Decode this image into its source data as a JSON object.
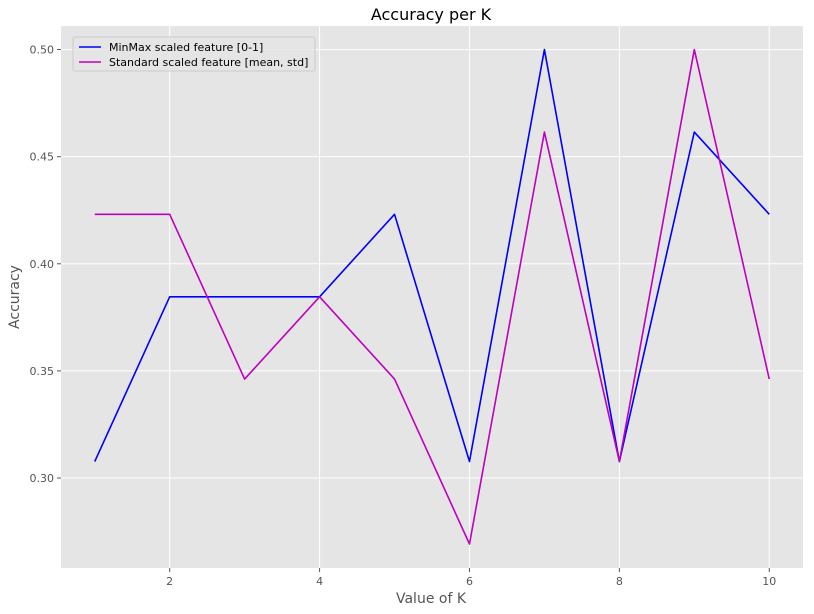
{
  "chart_data": {
    "type": "line",
    "title": "Accuracy per K",
    "xlabel": "Value of K",
    "ylabel": "Accuracy",
    "x": [
      1,
      2,
      3,
      4,
      5,
      6,
      7,
      8,
      9,
      10
    ],
    "xticks": [
      2,
      4,
      6,
      8,
      10
    ],
    "xtick_labels": [
      "2",
      "4",
      "6",
      "8",
      "10"
    ],
    "yticks": [
      0.3,
      0.35,
      0.4,
      0.45,
      0.5
    ],
    "ytick_labels": [
      "0.30",
      "0.35",
      "0.40",
      "0.45",
      "0.50"
    ],
    "xlim": [
      0.55,
      10.45
    ],
    "ylim": [
      0.258,
      0.511
    ],
    "grid": true,
    "legend_position": "top-left",
    "background_color": "#e5e5e5",
    "grid_color": "#ffffff",
    "series": [
      {
        "name": "MinMax scaled feature [0-1]",
        "color": "#0000ff",
        "values": [
          0.3077,
          0.3846,
          0.3846,
          0.3846,
          0.4231,
          0.3077,
          0.5,
          0.3077,
          0.4615,
          0.4231
        ]
      },
      {
        "name": "Standard scaled feature [mean, std]",
        "color": "#bf00bf",
        "values": [
          0.4231,
          0.4231,
          0.3462,
          0.3846,
          0.3462,
          0.2692,
          0.4615,
          0.3077,
          0.5,
          0.3462
        ]
      }
    ]
  }
}
